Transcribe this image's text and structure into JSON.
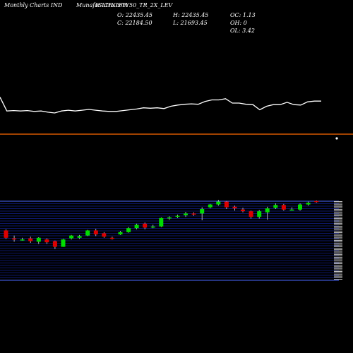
{
  "header": {
    "left_label": "Monthly Charts IND",
    "symbol_label": "MunafaSutra.com",
    "instrument": "ICICINIFTY50_TR_2X_LEV",
    "open_text": "O: 22435.45",
    "high_text": "H: 22435.45",
    "oc_text": "OC: 1.13",
    "close_text": "C: 22184.50",
    "low_text": "L: 21693.45",
    "oh_text": "OH: 0",
    "ol_text": "OL: 3.42"
  },
  "colors": {
    "background": "#000000",
    "line": "#ffffff",
    "divider": "#ff6a00",
    "up": "#00dd00",
    "down": "#dd0000",
    "grid": "#1a2fd0",
    "text": "#ffffff"
  },
  "chart_data": [
    {
      "type": "line",
      "title": "",
      "y_relative": [
        0.4,
        0.05,
        0.06,
        0.05,
        0.06,
        0.04,
        0.05,
        0.02,
        0.0,
        0.05,
        0.07,
        0.05,
        0.07,
        0.09,
        0.07,
        0.05,
        0.04,
        0.04,
        0.06,
        0.08,
        0.1,
        0.13,
        0.12,
        0.13,
        0.11,
        0.17,
        0.2,
        0.22,
        0.23,
        0.22,
        0.29,
        0.33,
        0.33,
        0.36,
        0.25,
        0.25,
        0.22,
        0.21,
        0.08,
        0.17,
        0.21,
        0.21,
        0.27,
        0.21,
        0.2,
        0.28,
        0.3,
        0.3
      ]
    },
    {
      "type": "candlestick",
      "title": "",
      "candles": [
        {
          "o": 0.92,
          "c": 0.79,
          "h": 0.94,
          "l": 0.77
        },
        {
          "o": 0.78,
          "c": 0.76,
          "h": 0.83,
          "l": 0.72
        },
        {
          "o": 0.76,
          "c": 0.76,
          "h": 0.79,
          "l": 0.74
        },
        {
          "o": 0.78,
          "c": 0.73,
          "h": 0.81,
          "l": 0.7
        },
        {
          "o": 0.72,
          "c": 0.79,
          "h": 0.8,
          "l": 0.68
        },
        {
          "o": 0.76,
          "c": 0.71,
          "h": 0.78,
          "l": 0.68
        },
        {
          "o": 0.73,
          "c": 0.63,
          "h": 0.74,
          "l": 0.59
        },
        {
          "o": 0.63,
          "c": 0.76,
          "h": 0.77,
          "l": 0.63
        },
        {
          "o": 0.78,
          "c": 0.83,
          "h": 0.84,
          "l": 0.76
        },
        {
          "o": 0.79,
          "c": 0.82,
          "h": 0.84,
          "l": 0.77
        },
        {
          "o": 0.83,
          "c": 0.92,
          "h": 0.93,
          "l": 0.82
        },
        {
          "o": 0.92,
          "c": 0.85,
          "h": 0.95,
          "l": 0.82
        },
        {
          "o": 0.87,
          "c": 0.81,
          "h": 0.89,
          "l": 0.79
        },
        {
          "o": 0.79,
          "c": 0.77,
          "h": 0.81,
          "l": 0.76
        },
        {
          "o": 0.85,
          "c": 0.89,
          "h": 0.91,
          "l": 0.84
        },
        {
          "o": 0.89,
          "c": 0.96,
          "h": 0.98,
          "l": 0.88
        },
        {
          "o": 0.96,
          "c": 1.02,
          "h": 1.04,
          "l": 0.94
        },
        {
          "o": 1.04,
          "c": 0.97,
          "h": 1.06,
          "l": 0.94
        },
        {
          "o": 0.98,
          "c": 0.99,
          "h": 1.02,
          "l": 0.96
        },
        {
          "o": 0.99,
          "c": 1.14,
          "h": 1.15,
          "l": 0.98
        },
        {
          "o": 1.14,
          "c": 1.15,
          "h": 1.17,
          "l": 1.11
        },
        {
          "o": 1.16,
          "c": 1.18,
          "h": 1.2,
          "l": 1.14
        },
        {
          "o": 1.19,
          "c": 1.22,
          "h": 1.25,
          "l": 1.16
        },
        {
          "o": 1.22,
          "c": 1.21,
          "h": 1.24,
          "l": 1.18
        },
        {
          "o": 1.22,
          "c": 1.3,
          "h": 1.33,
          "l": 1.1
        },
        {
          "o": 1.33,
          "c": 1.38,
          "h": 1.39,
          "l": 1.31
        },
        {
          "o": 1.38,
          "c": 1.43,
          "h": 1.46,
          "l": 1.36
        },
        {
          "o": 1.43,
          "c": 1.33,
          "h": 1.44,
          "l": 1.3
        },
        {
          "o": 1.34,
          "c": 1.31,
          "h": 1.36,
          "l": 1.27
        },
        {
          "o": 1.29,
          "c": 1.26,
          "h": 1.32,
          "l": 1.24
        },
        {
          "o": 1.26,
          "c": 1.16,
          "h": 1.27,
          "l": 1.13
        },
        {
          "o": 1.16,
          "c": 1.26,
          "h": 1.28,
          "l": 1.13
        },
        {
          "o": 1.24,
          "c": 1.31,
          "h": 1.34,
          "l": 1.11
        },
        {
          "o": 1.32,
          "c": 1.37,
          "h": 1.4,
          "l": 1.3
        },
        {
          "o": 1.37,
          "c": 1.29,
          "h": 1.39,
          "l": 1.27
        },
        {
          "o": 1.29,
          "c": 1.29,
          "h": 1.33,
          "l": 1.28
        },
        {
          "o": 1.29,
          "c": 1.38,
          "h": 1.4,
          "l": 1.27
        },
        {
          "o": 1.38,
          "c": 1.41,
          "h": 1.43,
          "l": 1.36
        },
        {
          "o": 1.44,
          "c": 1.43,
          "h": 1.45,
          "l": 1.41
        }
      ]
    }
  ]
}
